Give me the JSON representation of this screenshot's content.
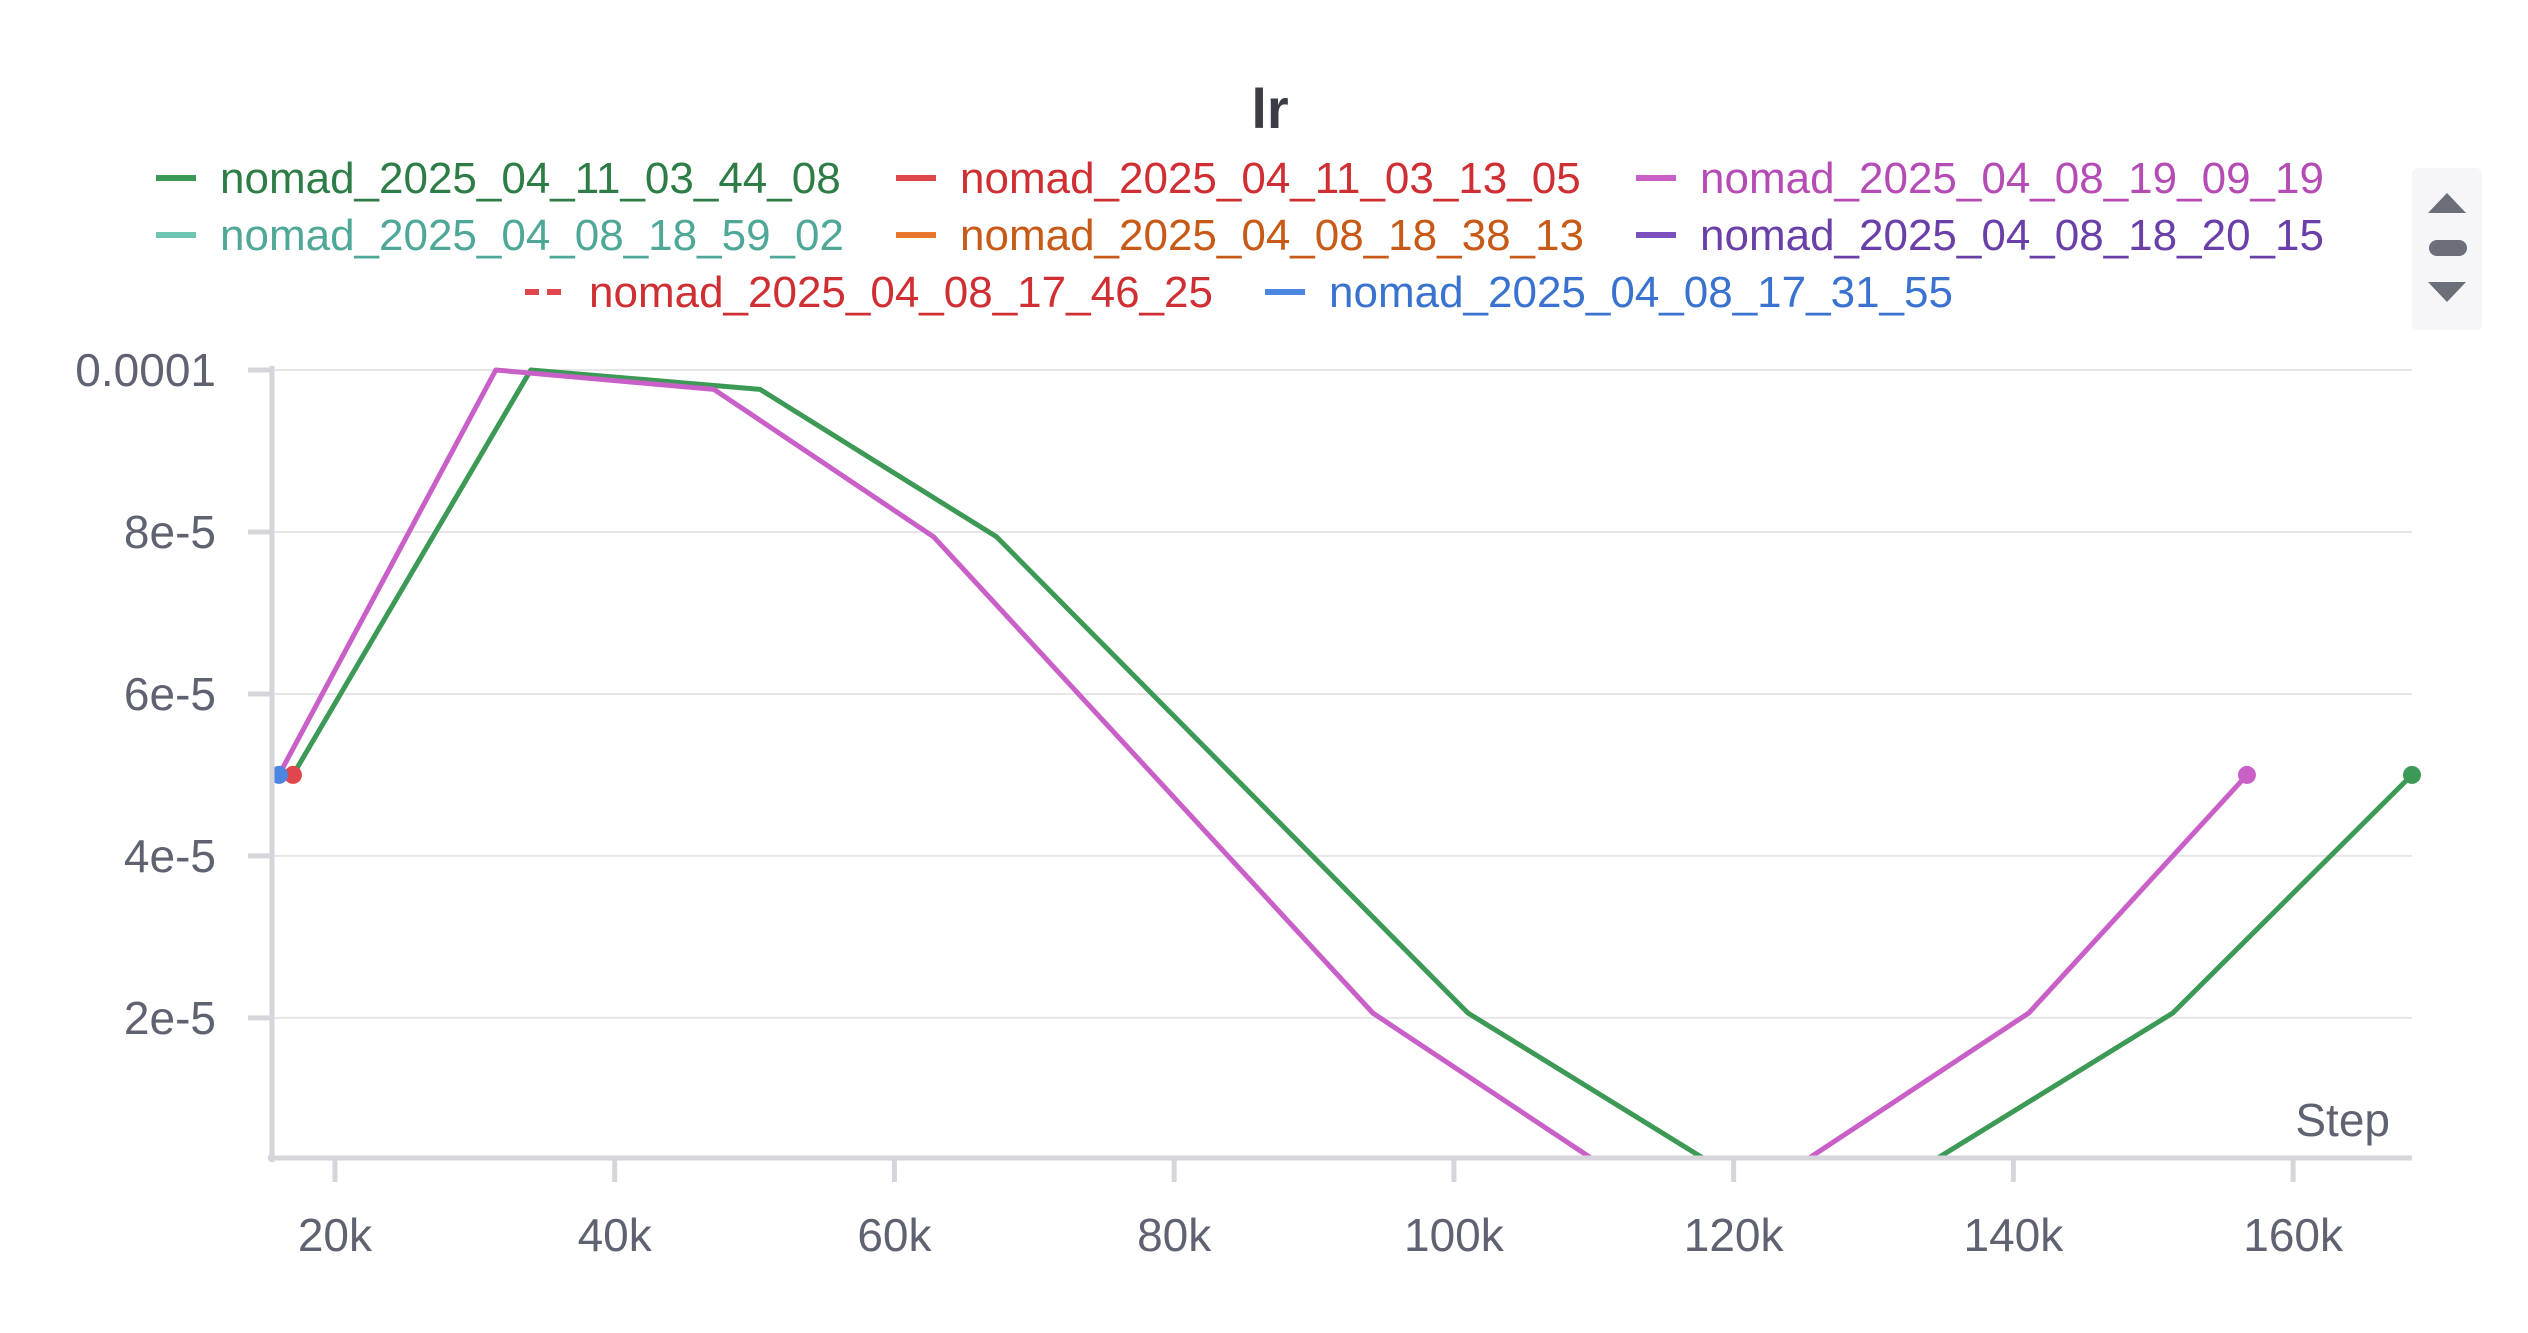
{
  "chart_data": {
    "type": "line",
    "title": "lr",
    "xlabel": "Step",
    "ylabel": "",
    "xlim": [
      15500,
      168500
    ],
    "ylim": [
      2.7e-06,
      0.0001
    ],
    "x_ticks": [
      {
        "value": 20000,
        "label": "20k"
      },
      {
        "value": 40000,
        "label": "40k"
      },
      {
        "value": 60000,
        "label": "60k"
      },
      {
        "value": 80000,
        "label": "80k"
      },
      {
        "value": 100000,
        "label": "100k"
      },
      {
        "value": 120000,
        "label": "120k"
      },
      {
        "value": 140000,
        "label": "140k"
      },
      {
        "value": 160000,
        "label": "160k"
      }
    ],
    "y_ticks": [
      {
        "value": 0.0001,
        "label": "0.0001"
      },
      {
        "value": 8e-05,
        "label": "8e-5"
      },
      {
        "value": 6e-05,
        "label": "6e-5"
      },
      {
        "value": 4e-05,
        "label": "4e-5"
      },
      {
        "value": 2e-05,
        "label": "2e-5"
      }
    ],
    "grid": true,
    "legend_position": "top",
    "series": [
      {
        "name": "nomad_2025_04_11_03_44_08",
        "color": "#3d9a56",
        "dash": false,
        "x": [
          17000,
          34000,
          50400,
          67300,
          101000,
          117800,
          134600,
          151400,
          168500
        ],
        "y": [
          5e-05,
          0.0001,
          9.76e-05,
          7.94e-05,
          2.06e-05,
          2.7e-06,
          2.7e-06,
          2.06e-05,
          5e-05
        ],
        "end_markers": [
          168500
        ]
      },
      {
        "name": "nomad_2025_04_11_03_13_05",
        "color": "#e0474c",
        "dash": false,
        "x": [
          17000
        ],
        "y": [
          5e-05
        ],
        "end_markers": [
          17000
        ]
      },
      {
        "name": "nomad_2025_04_08_19_09_19",
        "color": "#c860c8",
        "dash": false,
        "x": [
          16000,
          31500,
          47100,
          62800,
          94200,
          109800,
          125400,
          141100,
          156700
        ],
        "y": [
          5e-05,
          0.0001,
          9.76e-05,
          7.94e-05,
          2.06e-05,
          2.7e-06,
          2.7e-06,
          2.06e-05,
          5e-05
        ],
        "end_markers": [
          156700
        ]
      },
      {
        "name": "nomad_2025_04_08_18_59_02",
        "color": "#6ec6b2",
        "dash": false,
        "x": [],
        "y": [],
        "end_markers": []
      },
      {
        "name": "nomad_2025_04_08_18_38_13",
        "color": "#e8762c",
        "dash": false,
        "x": [],
        "y": [],
        "end_markers": []
      },
      {
        "name": "nomad_2025_04_08_18_20_15",
        "color": "#7e4fbe",
        "dash": false,
        "x": [],
        "y": [],
        "end_markers": []
      },
      {
        "name": "nomad_2025_04_08_17_46_25",
        "color": "#e0474c",
        "dash": true,
        "x": [],
        "y": [],
        "end_markers": []
      },
      {
        "name": "nomad_2025_04_08_17_31_55",
        "color": "#4d86e0",
        "dash": false,
        "x": [
          16000
        ],
        "y": [
          5e-05
        ],
        "end_markers": [
          16000
        ]
      }
    ]
  },
  "legend_text_colors": {
    "nomad_2025_04_11_03_44_08": "#2e7d46",
    "nomad_2025_04_11_03_13_05": "#cf2f33",
    "nomad_2025_04_08_19_09_19": "#b54cb5",
    "nomad_2025_04_08_18_59_02": "#4fa897",
    "nomad_2025_04_08_18_38_13": "#c75a17",
    "nomad_2025_04_08_18_20_15": "#6a3fa8",
    "nomad_2025_04_08_17_46_25": "#cf2f33",
    "nomad_2025_04_08_17_31_55": "#3a73cf"
  },
  "legend_scroll": {
    "up_icon": "triangle-up-icon",
    "handle_icon": "scroll-handle-icon",
    "down_icon": "triangle-down-icon"
  }
}
